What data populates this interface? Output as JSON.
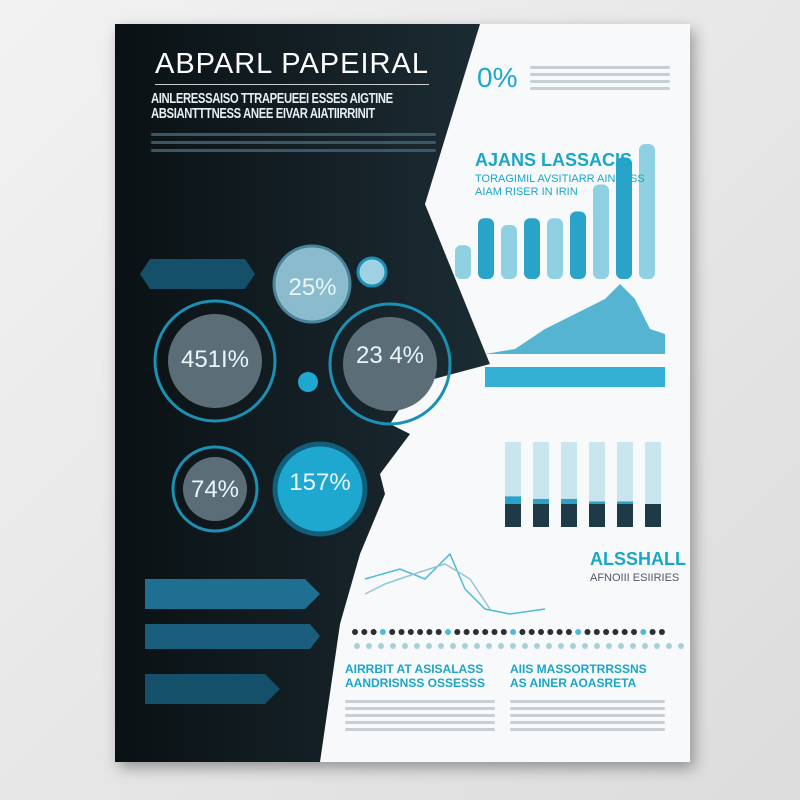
{
  "header": {
    "title": "ABPARL PAPEIRAL",
    "subtitle_line1": "AINLERESSAISO TTRAPEUEEI ESSES AIGTINE",
    "subtitle_line2": "ABSIANTTTNESS ANEE EIVAR AIATIIRRINIT"
  },
  "stats": [
    {
      "value": "25%"
    },
    {
      "value": "451I%"
    },
    {
      "value": "23 4%"
    },
    {
      "value": "74%"
    },
    {
      "value": "157%"
    }
  ],
  "top_right": {
    "stat": "0%",
    "heading": "AJANS LASSACIS",
    "subheading1": "TORAGIMIL AVSITIARR AINESSS",
    "subheading2": "AIAM RISER IN IRIN"
  },
  "bar_chart_levels": [
    0.25,
    0.45,
    0.4,
    0.45,
    0.45,
    0.5,
    0.7,
    0.9,
    1.0
  ],
  "mid_bars_levels": [
    0.6,
    0.55,
    0.55,
    0.5,
    0.5,
    0.45
  ],
  "side_block": {
    "heading": "ALSSHALL",
    "subheading": "AFNOIII ESIIRIES"
  },
  "bottom": {
    "left_heading1": "AIRRBIT AT ASISALASS",
    "left_heading2": "AANDRISNSS OSSESSS",
    "right_heading1": "AIIS MASSORTRRSSNS",
    "right_heading2": "AS AINER AOASRETA"
  },
  "colors": {
    "dark": "#0d1418",
    "accent": "#1ea7cf",
    "light_blue": "#9fd3e3"
  }
}
